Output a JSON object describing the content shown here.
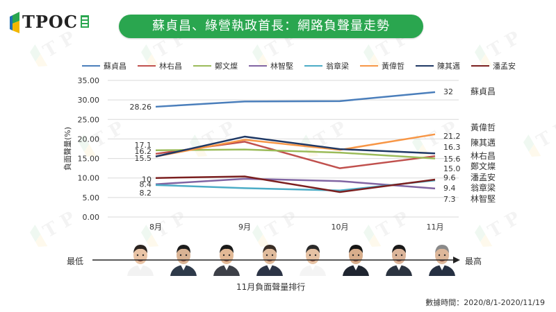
{
  "logo": {
    "text": "TPOC"
  },
  "title": "蘇貞昌、綠營執政首長：網路負聲量走勢",
  "colors": {
    "title_bg": "#2aa64f",
    "accent": "#2aa64f"
  },
  "chart_data": {
    "type": "line",
    "categories": [
      "8月",
      "9月",
      "10月",
      "11月"
    ],
    "ylabel": "負面聲量(%)",
    "ylim": [
      0,
      35
    ],
    "yticks": [
      "0.00",
      "5.00",
      "10.00",
      "15.00",
      "20.00",
      "25.00",
      "30.00",
      "35.00"
    ],
    "grid": true,
    "legend_position": "top",
    "series": [
      {
        "name": "蘇貞昌",
        "color": "#4a7ebb",
        "values": [
          28.26,
          29.6,
          29.7,
          32
        ],
        "start_label": "28.26",
        "end_label": "32"
      },
      {
        "name": "林右昌",
        "color": "#c0504d",
        "values": [
          16.2,
          19.3,
          12.5,
          15.6
        ],
        "start_label": "16.2",
        "end_label": "15.6"
      },
      {
        "name": "鄭文燦",
        "color": "#9bbb59",
        "values": [
          17.1,
          17.3,
          16.5,
          15.0
        ],
        "start_label": "17.1",
        "end_label": "15.0"
      },
      {
        "name": "林智堅",
        "color": "#8064a2",
        "values": [
          8.4,
          9.8,
          9.2,
          7.3
        ],
        "start_label": "8.4",
        "end_label": "7.3"
      },
      {
        "name": "翁章梁",
        "color": "#4bacc6",
        "values": [
          8.2,
          7.4,
          6.8,
          9.4
        ],
        "start_label": "8.2",
        "end_label": "9.4"
      },
      {
        "name": "黃偉哲",
        "color": "#f79646",
        "values": [
          15.5,
          19.8,
          17.2,
          21.2
        ],
        "start_label": "15.5",
        "end_label": "21.2"
      },
      {
        "name": "陳其邁",
        "color": "#1f3864",
        "values": [
          15.5,
          20.6,
          17.4,
          16.3
        ],
        "start_label": "",
        "end_label": "16.3"
      },
      {
        "name": "潘孟安",
        "color": "#7b1f1f",
        "values": [
          10,
          10.4,
          6.4,
          9.6
        ],
        "start_label": "10",
        "end_label": "9.6"
      }
    ],
    "right_names": [
      "蘇貞昌",
      "黃偉哲",
      "陳其邁",
      "林右昌",
      "鄭文燦",
      "潘孟安",
      "翁章梁",
      "林智堅"
    ]
  },
  "ranking": {
    "low_label": "最低",
    "high_label": "最高",
    "axis_title": "11月負面聲量排行",
    "faces": [
      {
        "skin": "#e9c4a6",
        "hair": "#2b2420",
        "suit": "#f2f2f2"
      },
      {
        "skin": "#d9b394",
        "hair": "#1c1c1c",
        "suit": "#2e3a4a"
      },
      {
        "skin": "#e2b996",
        "hair": "#1a1a1a",
        "suit": "#3d4048"
      },
      {
        "skin": "#e0bb9c",
        "hair": "#3a2e26",
        "suit": "#2c3446"
      },
      {
        "skin": "#e6c2a4",
        "hair": "#2a2a2a",
        "suit": "#f4f4f4"
      },
      {
        "skin": "#d8ae8c",
        "hair": "#151515",
        "suit": "#1f2530"
      },
      {
        "skin": "#dcb59a",
        "hair": "#1a1a1a",
        "suit": "#2b3340"
      },
      {
        "skin": "#ddb79a",
        "hair": "#8a8a8a",
        "suit": "#263042"
      }
    ]
  },
  "footnote": "數據時間：2020/8/1-2020/11/19"
}
